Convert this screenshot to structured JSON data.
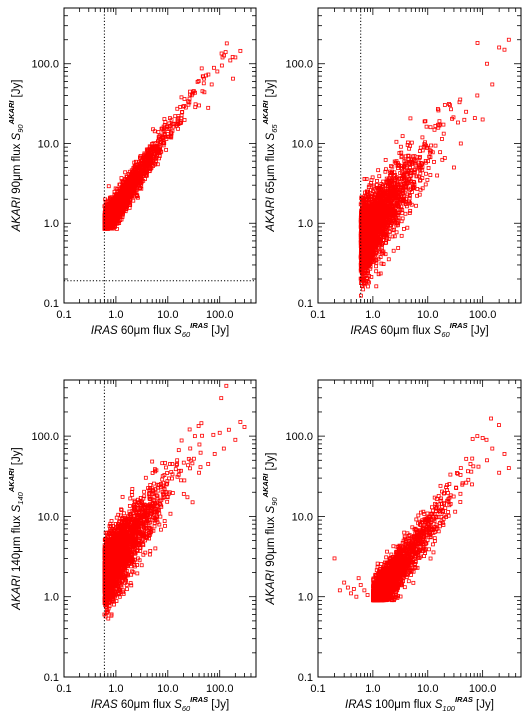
{
  "chart_data": [
    {
      "type": "scatter",
      "xlabel": {
        "italic": "IRAS",
        "text": " 60μm flux ",
        "sym": "S",
        "sub": "60",
        "sup": "IRAS",
        "unit": " [Jy]"
      },
      "ylabel": {
        "italic": "AKARI",
        "text": " 90μm flux ",
        "sym": "S",
        "sub": "90",
        "sup": "AKARI",
        "unit": " [Jy]"
      },
      "xlim": [
        0.1,
        500
      ],
      "ylim": [
        0.1,
        500
      ],
      "log_x": true,
      "log_y": true,
      "xticks": [
        "0.1",
        "1.0",
        "10.0",
        "100.0"
      ],
      "yticks": [
        "0.1",
        "1.0",
        "10.0",
        "100.0"
      ],
      "vline": 0.6,
      "hline": 0.19,
      "marker_color": "#ff0000",
      "cloud": {
        "xmin": 0.6,
        "xmax": 200,
        "xscale": 0.35,
        "ymin_floor": 0.85,
        "slope": 0.95,
        "intercept": 0.18,
        "scatter": 0.09,
        "n": 2600,
        "seed": 11
      },
      "points": [
        [
          130,
          140
        ],
        [
          160,
          110
        ],
        [
          200,
          120
        ],
        [
          250,
          145
        ],
        [
          90,
          80
        ],
        [
          70,
          55
        ],
        [
          110,
          95
        ],
        [
          40,
          30
        ],
        [
          180,
          65
        ],
        [
          60,
          28
        ]
      ]
    },
    {
      "type": "scatter",
      "xlabel": {
        "italic": "IRAS",
        "text": " 60μm flux ",
        "sym": "S",
        "sub": "60",
        "sup": "IRAS",
        "unit": " [Jy]"
      },
      "ylabel": {
        "italic": "AKARI",
        "text": " 65μm flux ",
        "sym": "S",
        "sub": "65",
        "sup": "AKARI",
        "unit": " [Jy]"
      },
      "xlim": [
        0.1,
        500
      ],
      "ylim": [
        0.1,
        500
      ],
      "log_x": true,
      "log_y": true,
      "xticks": [
        "0.1",
        "1.0",
        "10.0",
        "100.0"
      ],
      "yticks": [
        "0.1",
        "1.0",
        "10.0",
        "100.0"
      ],
      "vline": 0.6,
      "hline": null,
      "marker_color": "#ff0000",
      "cloud": {
        "xmin": 0.6,
        "xmax": 250,
        "xscale": 0.3,
        "ymin_floor": 0.1,
        "slope": 0.95,
        "intercept": -0.05,
        "scatter": 0.22,
        "n": 2600,
        "seed": 23
      },
      "points": [
        [
          120,
          100
        ],
        [
          200,
          160
        ],
        [
          300,
          200
        ],
        [
          250,
          150
        ],
        [
          80,
          40
        ],
        [
          50,
          25
        ],
        [
          150,
          55
        ],
        [
          40,
          10
        ],
        [
          30,
          5
        ],
        [
          100,
          20
        ]
      ]
    },
    {
      "type": "scatter",
      "xlabel": {
        "italic": "IRAS",
        "text": " 60μm flux ",
        "sym": "S",
        "sub": "60",
        "sup": "IRAS",
        "unit": " [Jy]"
      },
      "ylabel": {
        "italic": "AKARI",
        "text": " 140μm flux ",
        "sym": "S",
        "sub": "140",
        "sup": "AKARI",
        "unit": " [Jy]"
      },
      "xlim": [
        0.1,
        500
      ],
      "ylim": [
        0.1,
        500
      ],
      "log_x": true,
      "log_y": true,
      "xticks": [
        "0.1",
        "1.0",
        "10.0",
        "100.0"
      ],
      "yticks": [
        "0.1",
        "1.0",
        "10.0",
        "100.0"
      ],
      "vline": 0.6,
      "hline": null,
      "marker_color": "#ff0000",
      "cloud": {
        "xmin": 0.6,
        "xmax": 250,
        "xscale": 0.32,
        "ymin_floor": 0.1,
        "slope": 0.9,
        "intercept": 0.45,
        "scatter": 0.2,
        "n": 2600,
        "seed": 37
      },
      "points": [
        [
          150,
          120
        ],
        [
          250,
          150
        ],
        [
          200,
          90
        ],
        [
          100,
          110
        ],
        [
          300,
          130
        ],
        [
          80,
          60
        ],
        [
          60,
          45
        ],
        [
          40,
          35
        ],
        [
          120,
          70
        ],
        [
          30,
          15
        ]
      ]
    },
    {
      "type": "scatter",
      "xlabel": {
        "italic": "IRAS",
        "text": " 100μm flux ",
        "sym": "S",
        "sub": "100",
        "sup": "IRAS",
        "unit": " [Jy]"
      },
      "ylabel": {
        "italic": "AKARI",
        "text": " 90μm flux ",
        "sym": "S",
        "sub": "90",
        "sup": "AKARI",
        "unit": " [Jy]"
      },
      "xlim": [
        0.1,
        500
      ],
      "ylim": [
        0.1,
        500
      ],
      "log_x": true,
      "log_y": true,
      "xticks": [
        "0.1",
        "1.0",
        "10.0",
        "100.0"
      ],
      "yticks": [
        "0.1",
        "1.0",
        "10.0",
        "100.0"
      ],
      "vline": null,
      "hline": null,
      "marker_color": "#ff0000",
      "cloud": {
        "xmin": 1.0,
        "xmax": 250,
        "xscale": 0.33,
        "ymin_floor": 0.9,
        "slope": 0.95,
        "intercept": -0.1,
        "scatter": 0.13,
        "n": 2600,
        "seed": 53
      },
      "points": [
        [
          0.2,
          3
        ],
        [
          0.25,
          1.2
        ],
        [
          0.3,
          1.5
        ],
        [
          0.35,
          1.3
        ],
        [
          0.4,
          1.1
        ],
        [
          0.5,
          1.0
        ],
        [
          0.6,
          1.4
        ],
        [
          0.7,
          1.2
        ],
        [
          0.8,
          1.05
        ],
        [
          0.55,
          1.7
        ],
        [
          0.45,
          1.25
        ],
        [
          100,
          95
        ],
        [
          80,
          100
        ],
        [
          200,
          35
        ],
        [
          250,
          60
        ],
        [
          300,
          40
        ],
        [
          150,
          70
        ],
        [
          60,
          45
        ],
        [
          40,
          40
        ],
        [
          120,
          50
        ]
      ]
    }
  ]
}
